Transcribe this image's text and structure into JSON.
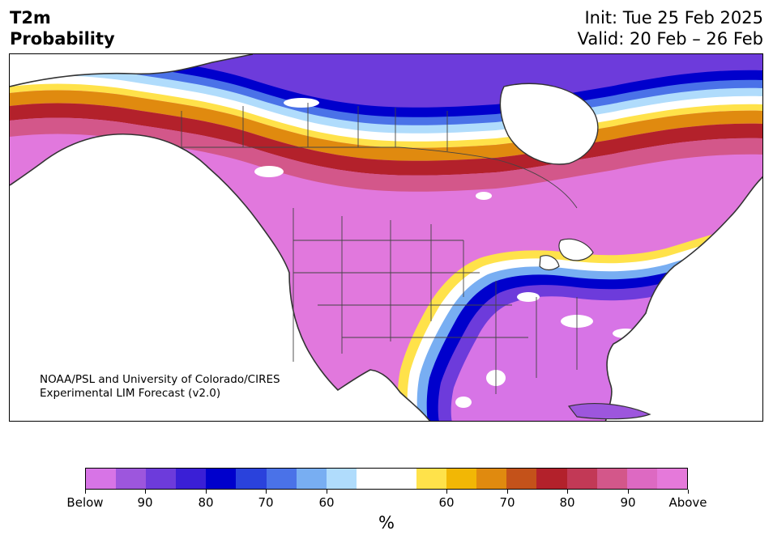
{
  "title": {
    "line1": "T2m",
    "line2": "Probability",
    "init": "Init: Tue 25 Feb 2025",
    "valid": "Valid: 20 Feb – 26 Feb"
  },
  "map": {
    "region": "North America",
    "layers": [
      "coastlines",
      "state-borders",
      "province-borders"
    ]
  },
  "credit": {
    "line1": "NOAA/PSL and University of Colorado/CIRES",
    "line2": "Experimental LIM Forecast (v2.0)"
  },
  "colorbar": {
    "unit": "%",
    "colors": [
      "#d774e6",
      "#9d56dd",
      "#6d3bdb",
      "#3a1fd6",
      "#0000cc",
      "#2a42dc",
      "#4a72e8",
      "#78aef2",
      "#b0dcfc",
      "#ffffff",
      "#ffffff",
      "#ffe24a",
      "#f2b705",
      "#e08a0f",
      "#c4521a",
      "#b3212b",
      "#c23956",
      "#d3578a",
      "#dd69c2",
      "#e579da"
    ],
    "tick_labels": [
      "Below",
      "90",
      "80",
      "70",
      "60",
      "60",
      "70",
      "80",
      "90",
      "Above"
    ]
  }
}
